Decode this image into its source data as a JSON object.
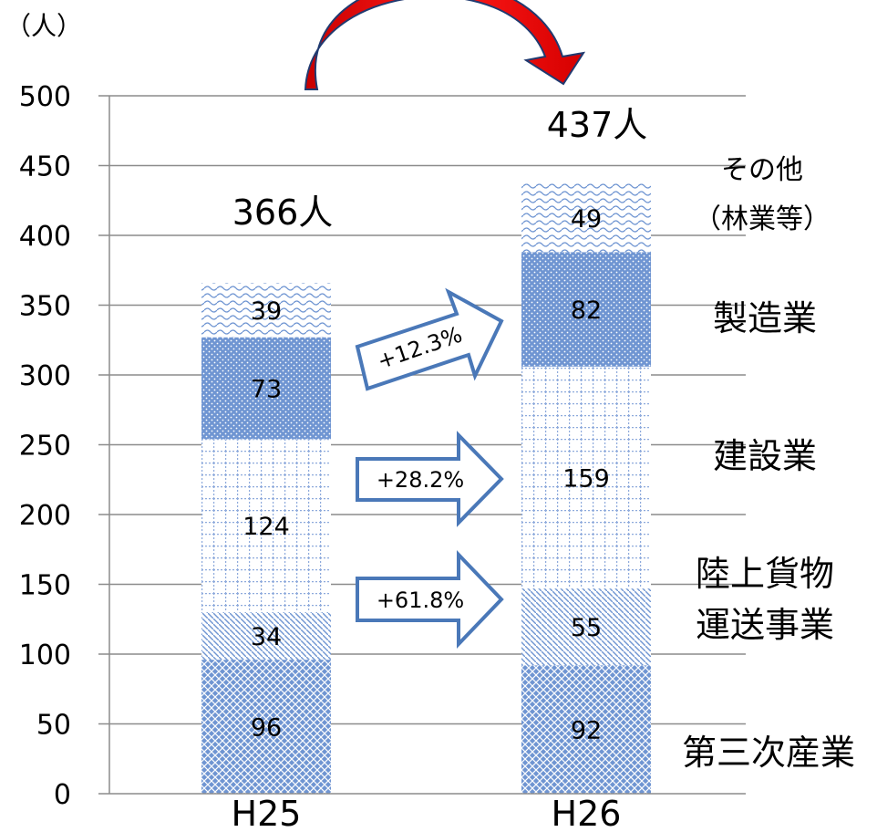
{
  "chart_data": {
    "type": "bar",
    "stacked": true,
    "categories": [
      "H25",
      "H26"
    ],
    "unit_label": "（人）",
    "ylim": [
      0,
      500
    ],
    "yticks": [
      "0",
      "50",
      "100",
      "150",
      "200",
      "250",
      "300",
      "350",
      "400",
      "450",
      "500"
    ],
    "grid": true,
    "series": [
      {
        "name": "第三次産業",
        "values": [
          96,
          92
        ]
      },
      {
        "name": "陸上貨物運送事業",
        "values": [
          34,
          55
        ]
      },
      {
        "name": "建設業",
        "values": [
          124,
          159
        ]
      },
      {
        "name": "製造業",
        "values": [
          73,
          82
        ]
      },
      {
        "name": "その他（林業等）",
        "values": [
          39,
          49
        ]
      }
    ],
    "totals": [
      "366人",
      "437人"
    ],
    "series_labels": {
      "tertiary": "第三次産業",
      "transport_line1": "陸上貨物",
      "transport_line2": "運送事業",
      "construction": "建設業",
      "manufacturing": "製造業",
      "other_line1": "その他",
      "other_line2": "（林業等）"
    },
    "growth_annotations": {
      "manufacturing": "+12.3%",
      "construction": "+28.2%",
      "transport": "+61.8%"
    },
    "colors": {
      "fill_blue": "#6f95d2",
      "arrow_outline": "#4a78b8",
      "curve_red": "#e00000",
      "curve_edge": "#203a70",
      "grid": "#8c8c8c"
    }
  }
}
